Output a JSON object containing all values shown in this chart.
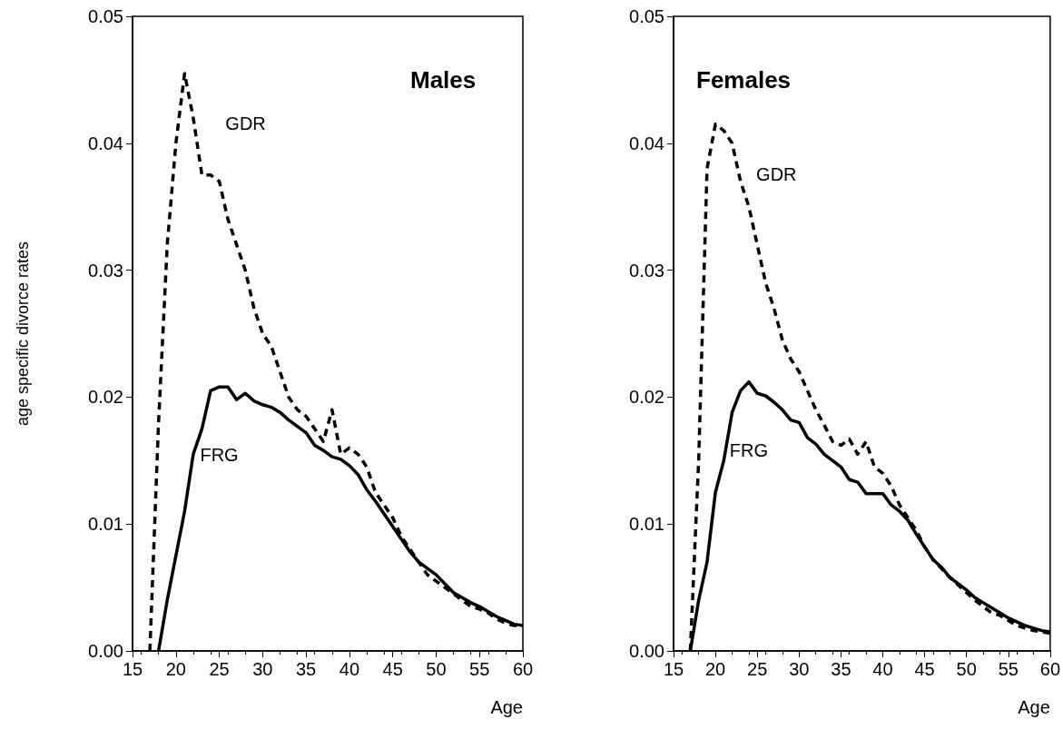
{
  "chart_data": [
    {
      "type": "line",
      "title": "Males",
      "xlabel": "Age",
      "ylabel": "age specific divorce rates",
      "xlim": [
        15,
        60
      ],
      "xticks": [
        15,
        20,
        25,
        30,
        35,
        40,
        45,
        50,
        55,
        60
      ],
      "ylim": [
        0,
        0.05
      ],
      "yticks": [
        {
          "value": 0,
          "label": "0.00"
        },
        {
          "value": 0.01,
          "label": "0.01"
        },
        {
          "value": 0.02,
          "label": "0.02"
        },
        {
          "value": 0.03,
          "label": "0.03"
        },
        {
          "value": 0.04,
          "label": "0.04"
        },
        {
          "value": 0.05,
          "label": "0.05"
        }
      ],
      "grid": false,
      "legend": false,
      "marker": "none",
      "series": [
        {
          "name": "GDR",
          "color": "#000000",
          "line_style": "dashed",
          "x": [
            17,
            18,
            19,
            20,
            21,
            22,
            23,
            24,
            25,
            26,
            27,
            28,
            29,
            30,
            31,
            32,
            33,
            34,
            35,
            36,
            37,
            38,
            39,
            40,
            41,
            42,
            43,
            44,
            45,
            46,
            47,
            48,
            49,
            50,
            51,
            52,
            53,
            54,
            55,
            56,
            57,
            58,
            59,
            60
          ],
          "values": [
            0,
            0.018,
            0.032,
            0.04,
            0.0455,
            0.042,
            0.0375,
            0.0375,
            0.037,
            0.034,
            0.032,
            0.03,
            0.027,
            0.025,
            0.024,
            0.022,
            0.02,
            0.019,
            0.0185,
            0.0175,
            0.0165,
            0.019,
            0.0155,
            0.016,
            0.0155,
            0.0145,
            0.0125,
            0.0115,
            0.0105,
            0.009,
            0.008,
            0.007,
            0.006,
            0.0055,
            0.005,
            0.0045,
            0.004,
            0.0035,
            0.0033,
            0.003,
            0.0025,
            0.0022,
            0.002,
            0.002
          ]
        },
        {
          "name": "FRG",
          "color": "#000000",
          "line_style": "solid",
          "x": [
            18,
            19,
            20,
            21,
            22,
            23,
            24,
            25,
            26,
            27,
            28,
            29,
            30,
            31,
            32,
            33,
            34,
            35,
            36,
            37,
            38,
            39,
            40,
            41,
            42,
            43,
            44,
            45,
            46,
            47,
            48,
            49,
            50,
            51,
            52,
            53,
            54,
            55,
            56,
            57,
            58,
            59,
            60
          ],
          "values": [
            0,
            0.004,
            0.0075,
            0.011,
            0.0155,
            0.0175,
            0.0205,
            0.0208,
            0.0208,
            0.0198,
            0.0203,
            0.0197,
            0.0194,
            0.0192,
            0.0188,
            0.0182,
            0.0177,
            0.0172,
            0.0162,
            0.0158,
            0.0153,
            0.0151,
            0.0146,
            0.0139,
            0.0127,
            0.0118,
            0.0108,
            0.0098,
            0.0088,
            0.0078,
            0.007,
            0.0065,
            0.006,
            0.0053,
            0.0046,
            0.0042,
            0.0038,
            0.0035,
            0.0031,
            0.0027,
            0.0024,
            0.0021,
            0.002
          ]
        }
      ]
    },
    {
      "type": "line",
      "title": "Females",
      "xlabel": "Age",
      "xlim": [
        15,
        60
      ],
      "xticks": [
        15,
        20,
        25,
        30,
        35,
        40,
        45,
        50,
        55,
        60
      ],
      "ylim": [
        0,
        0.05
      ],
      "yticks": [
        {
          "value": 0,
          "label": "0.00"
        },
        {
          "value": 0.01,
          "label": "0.01"
        },
        {
          "value": 0.02,
          "label": "0.02"
        },
        {
          "value": 0.03,
          "label": "0.03"
        },
        {
          "value": 0.04,
          "label": "0.04"
        },
        {
          "value": 0.05,
          "label": "0.05"
        }
      ],
      "grid": false,
      "legend": false,
      "marker": "none",
      "series": [
        {
          "name": "GDR",
          "color": "#000000",
          "line_style": "dashed",
          "x": [
            17,
            18,
            19,
            20,
            21,
            22,
            23,
            24,
            25,
            26,
            27,
            28,
            29,
            30,
            31,
            32,
            33,
            34,
            35,
            36,
            37,
            38,
            39,
            40,
            41,
            42,
            43,
            44,
            45,
            46,
            47,
            48,
            49,
            50,
            51,
            52,
            53,
            54,
            55,
            56,
            57,
            58,
            59,
            60
          ],
          "values": [
            0,
            0.015,
            0.038,
            0.0415,
            0.041,
            0.04,
            0.037,
            0.035,
            0.032,
            0.029,
            0.027,
            0.0245,
            0.023,
            0.022,
            0.0205,
            0.019,
            0.0178,
            0.0165,
            0.0162,
            0.0167,
            0.0155,
            0.0165,
            0.0145,
            0.014,
            0.013,
            0.0115,
            0.0105,
            0.0095,
            0.0082,
            0.0072,
            0.0065,
            0.0058,
            0.0052,
            0.0046,
            0.004,
            0.0035,
            0.003,
            0.0028,
            0.0024,
            0.002,
            0.0018,
            0.0016,
            0.0015,
            0.0014
          ]
        },
        {
          "name": "FRG",
          "color": "#000000",
          "line_style": "solid",
          "x": [
            17,
            18,
            19,
            20,
            21,
            22,
            23,
            24,
            25,
            26,
            27,
            28,
            29,
            30,
            31,
            32,
            33,
            34,
            35,
            36,
            37,
            38,
            39,
            40,
            41,
            42,
            43,
            44,
            45,
            46,
            47,
            48,
            49,
            50,
            51,
            52,
            53,
            54,
            55,
            56,
            57,
            58,
            59,
            60
          ],
          "values": [
            0,
            0.004,
            0.007,
            0.0125,
            0.015,
            0.0188,
            0.0205,
            0.0212,
            0.0203,
            0.0201,
            0.0196,
            0.019,
            0.0182,
            0.018,
            0.0168,
            0.0163,
            0.0155,
            0.015,
            0.0145,
            0.0135,
            0.0133,
            0.0124,
            0.0124,
            0.0124,
            0.0115,
            0.011,
            0.0103,
            0.0092,
            0.0082,
            0.0072,
            0.0066,
            0.0058,
            0.0053,
            0.0048,
            0.0042,
            0.0038,
            0.0034,
            0.003,
            0.0026,
            0.0023,
            0.002,
            0.0018,
            0.0016,
            0.0015
          ]
        }
      ]
    }
  ]
}
